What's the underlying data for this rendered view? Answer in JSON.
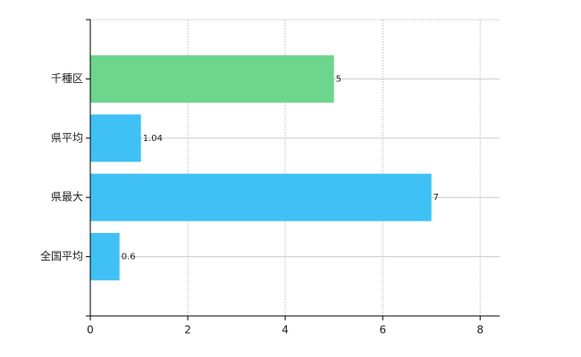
{
  "chart_data": {
    "type": "bar",
    "orientation": "horizontal",
    "categories": [
      "千種区",
      "県平均",
      "県最大",
      "全国平均"
    ],
    "values": [
      5,
      1.04,
      7,
      0.6
    ],
    "colors": [
      "#6dd58c",
      "#3fc1f5",
      "#3fc1f5",
      "#3fc1f5"
    ],
    "xlim": [
      0,
      8.4
    ],
    "xticks": [
      0,
      2,
      4,
      6,
      8
    ],
    "grid": true,
    "data_labels": true
  }
}
